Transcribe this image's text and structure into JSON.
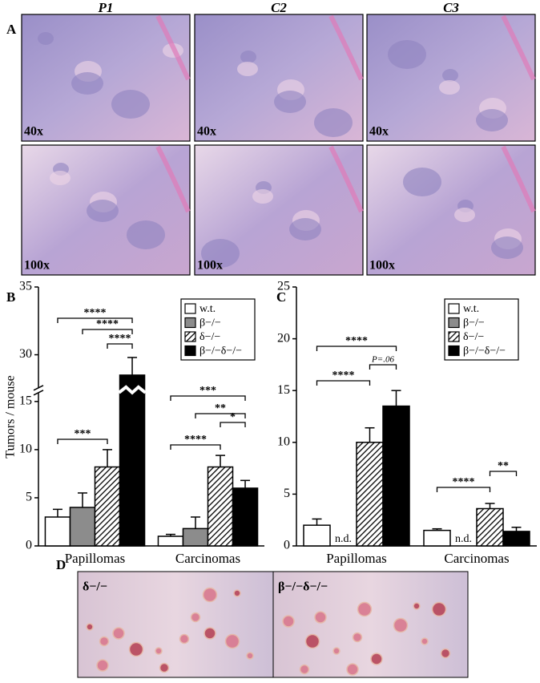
{
  "figure": {
    "panel_labels": [
      "A",
      "B",
      "C",
      "D"
    ],
    "columns": [
      "P1",
      "C2",
      "C3"
    ],
    "magnifications": [
      "40x",
      "100x"
    ],
    "photo_labels": [
      "δ−/−",
      "β−/−δ−/−"
    ]
  },
  "chart_data": [
    {
      "type": "bar",
      "ylabel": "Tumors / mouse",
      "categories": [
        "Papillomas",
        "Carcinomas"
      ],
      "series": [
        {
          "name": "w.t.",
          "color": "#ffffff",
          "values": [
            3,
            1.0
          ],
          "errors": [
            0.8,
            0.2
          ]
        },
        {
          "name": "β−/−",
          "color": "#8c8c8c",
          "values": [
            4,
            1.8
          ],
          "errors": [
            1.5,
            1.2
          ]
        },
        {
          "name": "δ−/−",
          "color": "#000000",
          "hatch": true,
          "values": [
            8.2,
            8.2
          ],
          "errors": [
            1.8,
            1.2
          ]
        },
        {
          "name": "β−/−δ−/−",
          "color": "#000000",
          "values": [
            28.5,
            6.0
          ],
          "errors": [
            1.3,
            0.8
          ]
        }
      ],
      "ylim": [
        0,
        35
      ],
      "ybreak": [
        16,
        27.5
      ],
      "yticks": [
        0,
        5,
        10,
        15,
        30,
        35
      ],
      "brackets": [
        {
          "label": "****",
          "category": 0,
          "series": [
            0,
            3
          ]
        },
        {
          "label": "****",
          "category": 0,
          "series": [
            1,
            3
          ]
        },
        {
          "label": "****",
          "category": 0,
          "series": [
            2,
            3
          ]
        },
        {
          "label": "***",
          "category": 0,
          "series": [
            0,
            2
          ]
        },
        {
          "label": "***",
          "category": 1,
          "series": [
            0,
            3
          ]
        },
        {
          "label": "**",
          "category": 1,
          "series": [
            1,
            3
          ]
        },
        {
          "label": "*",
          "category": 1,
          "series": [
            2,
            3
          ]
        },
        {
          "label": "****",
          "category": 1,
          "series": [
            0,
            2
          ]
        }
      ]
    },
    {
      "type": "bar",
      "categories": [
        "Papillomas",
        "Carcinomas"
      ],
      "series": [
        {
          "name": "w.t.",
          "color": "#ffffff",
          "values": [
            2.0,
            1.5
          ],
          "errors": [
            0.6,
            0.15
          ]
        },
        {
          "name": "β−/−",
          "color": "#8c8c8c",
          "values": [
            null,
            null
          ],
          "value_labels": [
            "n.d.",
            "n.d."
          ]
        },
        {
          "name": "δ−/−",
          "color": "#000000",
          "hatch": true,
          "values": [
            10.0,
            3.6
          ],
          "errors": [
            1.4,
            0.5
          ]
        },
        {
          "name": "β−/−δ−/−",
          "color": "#000000",
          "values": [
            13.5,
            1.4
          ],
          "errors": [
            1.5,
            0.4
          ]
        }
      ],
      "ylim": [
        0,
        25
      ],
      "yticks": [
        0,
        5,
        10,
        15,
        20,
        25
      ],
      "brackets": [
        {
          "label": "****",
          "category": 0,
          "series": [
            0,
            3
          ]
        },
        {
          "label": "P=.06",
          "category": 0,
          "series": [
            2,
            3
          ]
        },
        {
          "label": "****",
          "category": 0,
          "series": [
            0,
            2
          ]
        },
        {
          "label": "****",
          "category": 1,
          "series": [
            0,
            2
          ]
        },
        {
          "label": "**",
          "category": 1,
          "series": [
            2,
            3
          ]
        }
      ]
    }
  ]
}
